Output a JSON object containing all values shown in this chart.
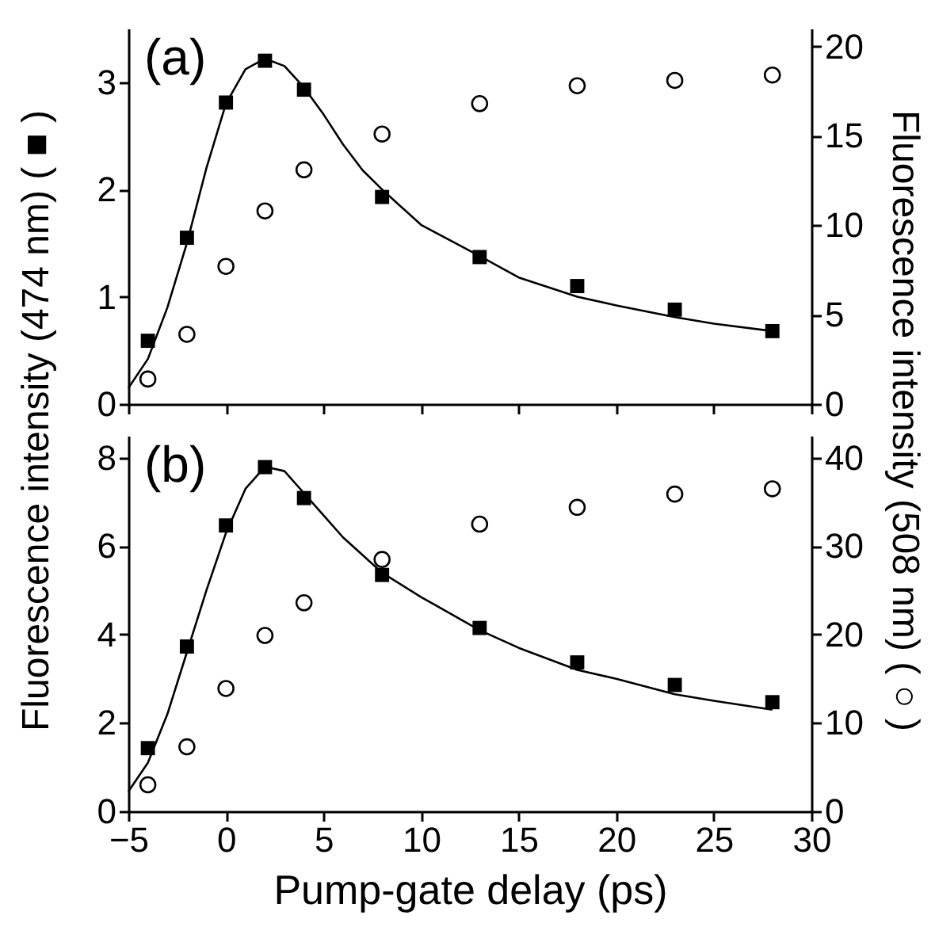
{
  "chart_data": [
    {
      "type": "scatter",
      "annotations": [
        "(a)"
      ],
      "ylabel": "Fluorescence intensity (474 nm) ( ■ )",
      "y2label": "Fluorescence intensity (508 nm) ( ○ )",
      "tick_labels": "y",
      "x": [
        -4,
        -2,
        0,
        2,
        4,
        8,
        13,
        18,
        23,
        28
      ],
      "xlim": [
        -5,
        30
      ],
      "xticks": [
        -5,
        0,
        5,
        10,
        15,
        20,
        25,
        30
      ],
      "ylim": [
        0,
        3.5
      ],
      "yticks": [
        0,
        1,
        2,
        3
      ],
      "y2lim": [
        0,
        21
      ],
      "y2ticks": [
        0,
        5,
        10,
        15,
        20
      ],
      "series": [
        {
          "color": "#000000",
          "marker": "square",
          "values": [
            0.59,
            1.55,
            2.81,
            3.2,
            2.93,
            1.93,
            1.37,
            1.1,
            0.88,
            0.68
          ]
        },
        {
          "color": "#000000",
          "marker": "circle",
          "axis": "y2",
          "values": [
            1.4,
            3.9,
            7.7,
            10.8,
            13.1,
            15.1,
            16.8,
            17.8,
            18.1,
            18.4
          ]
        },
        {
          "type": "line",
          "color": "#000000",
          "x": [
            -5,
            -4,
            -3,
            -2,
            -1,
            0,
            1,
            2,
            3,
            4,
            5,
            6,
            7,
            8,
            10,
            13,
            15,
            18,
            20,
            23,
            25,
            28
          ],
          "values": [
            0.15,
            0.42,
            0.9,
            1.5,
            2.2,
            2.8,
            3.12,
            3.22,
            3.15,
            2.95,
            2.7,
            2.42,
            2.18,
            2.0,
            1.67,
            1.38,
            1.18,
            1.0,
            0.92,
            0.81,
            0.75,
            0.68
          ]
        }
      ]
    },
    {
      "type": "scatter",
      "annotations": [
        "(b)"
      ],
      "xlabel": "Pump-gate delay (ps)",
      "x": [
        -4,
        -2,
        0,
        2,
        4,
        8,
        13,
        18,
        23,
        28
      ],
      "xlim": [
        -5,
        30
      ],
      "xticks": [
        -5,
        0,
        5,
        10,
        15,
        20,
        25,
        30
      ],
      "ylim": [
        0,
        8.5
      ],
      "yticks": [
        0,
        2,
        4,
        6,
        8
      ],
      "y2lim": [
        0,
        42.5
      ],
      "y2ticks": [
        0,
        10,
        20,
        30,
        40
      ],
      "series": [
        {
          "color": "#000000",
          "marker": "square",
          "values": [
            1.43,
            3.73,
            6.47,
            7.79,
            7.09,
            5.35,
            4.15,
            3.37,
            2.86,
            2.47
          ]
        },
        {
          "color": "#000000",
          "marker": "circle",
          "axis": "y2",
          "values": [
            3.0,
            7.3,
            13.9,
            19.9,
            23.6,
            28.5,
            32.5,
            34.4,
            35.9,
            36.5
          ]
        },
        {
          "type": "line",
          "color": "#000000",
          "x": [
            -5,
            -4,
            -3,
            -2,
            -1,
            0,
            1,
            2,
            3,
            4,
            5,
            6,
            7,
            8,
            10,
            13,
            15,
            18,
            20,
            23,
            25,
            28
          ],
          "values": [
            0.45,
            1.1,
            2.2,
            3.6,
            5.0,
            6.3,
            7.3,
            7.8,
            7.7,
            7.2,
            6.7,
            6.2,
            5.8,
            5.4,
            4.85,
            4.1,
            3.7,
            3.2,
            3.0,
            2.65,
            2.5,
            2.3
          ]
        }
      ]
    }
  ]
}
